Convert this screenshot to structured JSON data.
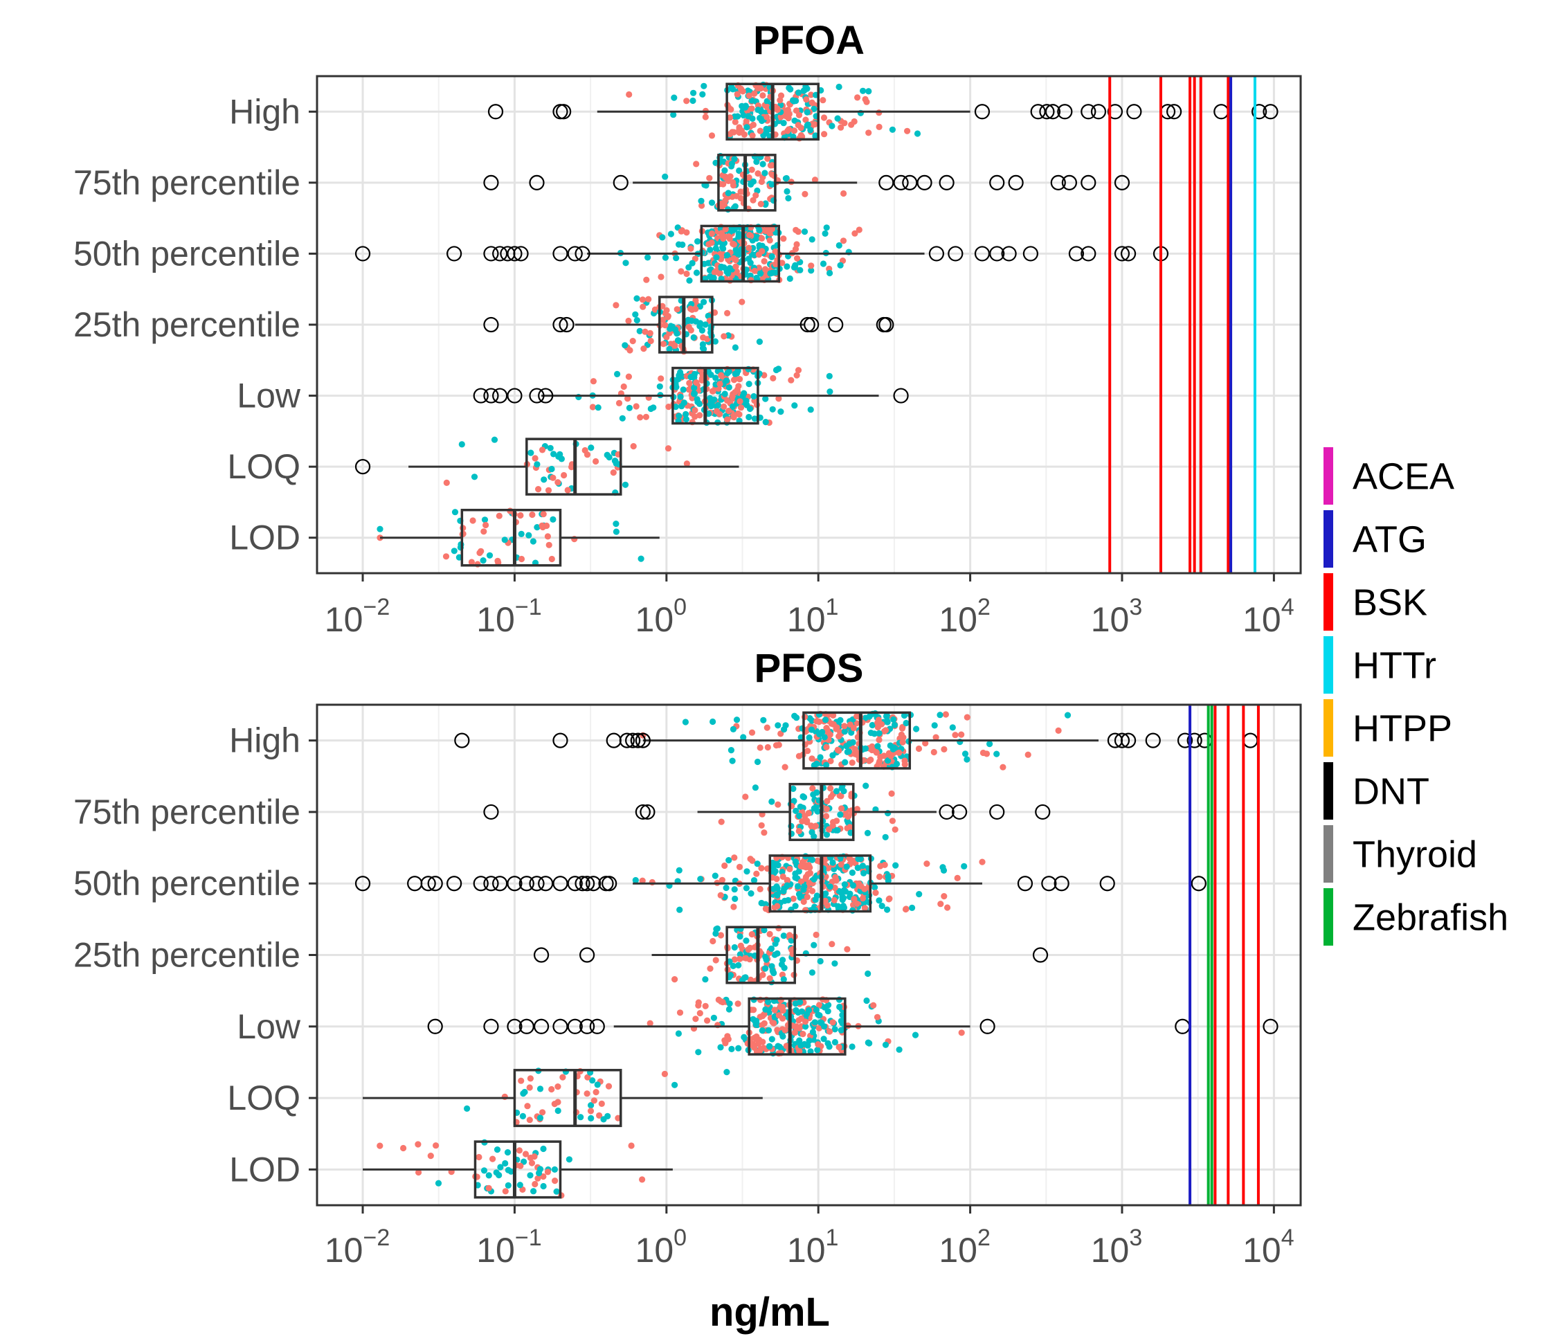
{
  "figure": {
    "xlabel": "ng/mL",
    "legend_position": "right",
    "legend": [
      {
        "label": "ACEA",
        "color": "#e21bb5"
      },
      {
        "label": "ATG",
        "color": "#1c1cc4"
      },
      {
        "label": "BSK",
        "color": "#ff0000"
      },
      {
        "label": "HTTr",
        "color": "#00d9ee"
      },
      {
        "label": "HTPP",
        "color": "#ffb400"
      },
      {
        "label": "DNT",
        "color": "#000000"
      },
      {
        "label": "Thyroid",
        "color": "#808080"
      },
      {
        "label": "Zebrafish",
        "color": "#00b233"
      }
    ],
    "point_colors": {
      "a": "#f8766d",
      "b": "#00bfc4"
    }
  },
  "chart_data": [
    {
      "type": "boxplot",
      "title": "PFOA",
      "xlabel": "ng/mL",
      "x_scale": "log10",
      "xlim": [
        0.005,
        15000
      ],
      "x_ticks": [
        {
          "value": 0.01,
          "base": "10",
          "exp": "−2"
        },
        {
          "value": 0.1,
          "base": "10",
          "exp": "−1"
        },
        {
          "value": 1,
          "base": "10",
          "exp": "0"
        },
        {
          "value": 10,
          "base": "10",
          "exp": "1"
        },
        {
          "value": 100,
          "base": "10",
          "exp": "2"
        },
        {
          "value": 1000,
          "base": "10",
          "exp": "3"
        },
        {
          "value": 10000,
          "base": "10",
          "exp": "4"
        }
      ],
      "categories": [
        "High",
        "75th percentile",
        "50th percentile",
        "25th percentile",
        "Low",
        "LOQ",
        "LOD"
      ],
      "boxes": [
        {
          "label": "High",
          "q1": 2.5,
          "median": 5,
          "q3": 10,
          "wmin": 0.35,
          "wmax": 100,
          "spread": [
            0.35,
            100
          ],
          "n": 220,
          "outliers": [
            0.075,
            0.2,
            0.21,
            120,
            280,
            320,
            350,
            420,
            600,
            700,
            900,
            1200,
            2000,
            2200,
            4500,
            8000,
            9500
          ]
        },
        {
          "label": "75th percentile",
          "q1": 2.2,
          "median": 3.3,
          "q3": 5.2,
          "wmin": 0.6,
          "wmax": 18,
          "spread": [
            0.6,
            18
          ],
          "n": 110,
          "outliers": [
            0.07,
            0.14,
            0.5,
            28,
            35,
            40,
            50,
            70,
            150,
            200,
            380,
            450,
            600,
            1000
          ]
        },
        {
          "label": "50th percentile",
          "q1": 1.7,
          "median": 3.2,
          "q3": 5.5,
          "wmin": 0.3,
          "wmax": 50,
          "spread": [
            0.3,
            50
          ],
          "n": 320,
          "outliers": [
            0.01,
            0.04,
            0.07,
            0.08,
            0.09,
            0.1,
            0.11,
            0.2,
            0.25,
            0.28,
            60,
            80,
            120,
            150,
            180,
            250,
            500,
            600,
            1000,
            1100,
            1800
          ]
        },
        {
          "label": "25th percentile",
          "q1": 0.9,
          "median": 1.3,
          "q3": 2.0,
          "wmin": 0.25,
          "wmax": 8,
          "spread": [
            0.25,
            8
          ],
          "n": 110,
          "outliers": [
            0.07,
            0.2,
            0.22,
            8.5,
            9,
            13,
            27,
            28
          ]
        },
        {
          "label": "Low",
          "q1": 1.1,
          "median": 1.8,
          "q3": 4.0,
          "wmin": 0.15,
          "wmax": 25,
          "spread": [
            0.15,
            25
          ],
          "n": 240,
          "outliers": [
            0.06,
            0.07,
            0.08,
            0.1,
            0.14,
            0.16,
            35
          ]
        },
        {
          "label": "LOQ",
          "q1": 0.12,
          "median": 0.25,
          "q3": 0.5,
          "wmin": 0.02,
          "wmax": 3,
          "spread": [
            0.02,
            3
          ],
          "n": 50,
          "outliers": [
            0.01
          ]
        },
        {
          "label": "LOD",
          "q1": 0.045,
          "median": 0.1,
          "q3": 0.2,
          "wmin": 0.013,
          "wmax": 0.9,
          "spread": [
            0.013,
            0.9
          ],
          "n": 55,
          "outliers": []
        }
      ],
      "vlines": [
        {
          "value": 830,
          "color": "#ff0000"
        },
        {
          "value": 1800,
          "color": "#ff0000"
        },
        {
          "value": 2800,
          "color": "#ff0000"
        },
        {
          "value": 3000,
          "color": "#ff0000"
        },
        {
          "value": 3300,
          "color": "#ff0000"
        },
        {
          "value": 5000,
          "color": "#ff0000"
        },
        {
          "value": 5200,
          "color": "#1c1cc4"
        },
        {
          "value": 7500,
          "color": "#00d9ee"
        }
      ]
    },
    {
      "type": "boxplot",
      "title": "PFOS",
      "xlabel": "ng/mL",
      "x_scale": "log10",
      "xlim": [
        0.005,
        15000
      ],
      "x_ticks": [
        {
          "value": 0.01,
          "base": "10",
          "exp": "−2"
        },
        {
          "value": 0.1,
          "base": "10",
          "exp": "−1"
        },
        {
          "value": 1,
          "base": "10",
          "exp": "0"
        },
        {
          "value": 10,
          "base": "10",
          "exp": "1"
        },
        {
          "value": 100,
          "base": "10",
          "exp": "2"
        },
        {
          "value": 1000,
          "base": "10",
          "exp": "3"
        },
        {
          "value": 10000,
          "base": "10",
          "exp": "4"
        }
      ],
      "categories": [
        "High",
        "75th percentile",
        "50th percentile",
        "25th percentile",
        "Low",
        "LOQ",
        "LOD"
      ],
      "boxes": [
        {
          "label": "High",
          "q1": 8,
          "median": 19,
          "q3": 40,
          "wmin": 0.7,
          "wmax": 700,
          "spread": [
            0.7,
            700
          ],
          "n": 260,
          "outliers": [
            0.045,
            0.2,
            0.45,
            0.55,
            0.6,
            0.65,
            0.7,
            900,
            1000,
            1100,
            1600,
            2600,
            3000,
            3500,
            7000
          ]
        },
        {
          "label": "75th percentile",
          "q1": 6.5,
          "median": 10.5,
          "q3": 17,
          "wmin": 1.6,
          "wmax": 60,
          "spread": [
            1.6,
            60
          ],
          "n": 110,
          "outliers": [
            0.07,
            0.7,
            0.75,
            70,
            85,
            150,
            300
          ]
        },
        {
          "label": "50th percentile",
          "q1": 4.8,
          "median": 10.5,
          "q3": 22,
          "wmin": 0.6,
          "wmax": 120,
          "spread": [
            0.6,
            120
          ],
          "n": 320,
          "outliers": [
            0.01,
            0.022,
            0.027,
            0.03,
            0.04,
            0.06,
            0.07,
            0.08,
            0.1,
            0.12,
            0.14,
            0.16,
            0.2,
            0.25,
            0.28,
            0.3,
            0.33,
            0.4,
            0.42,
            230,
            330,
            400,
            800,
            3200
          ]
        },
        {
          "label": "25th percentile",
          "q1": 2.5,
          "median": 4.0,
          "q3": 7.0,
          "wmin": 0.8,
          "wmax": 22,
          "spread": [
            0.8,
            22
          ],
          "n": 110,
          "outliers": [
            0.15,
            0.3,
            290
          ]
        },
        {
          "label": "Low",
          "q1": 3.5,
          "median": 6.5,
          "q3": 15,
          "wmin": 0.45,
          "wmax": 100,
          "spread": [
            0.45,
            100
          ],
          "n": 260,
          "outliers": [
            0.03,
            0.07,
            0.1,
            0.12,
            0.15,
            0.2,
            0.25,
            0.3,
            0.35,
            130,
            2500,
            9500
          ]
        },
        {
          "label": "LOQ",
          "q1": 0.1,
          "median": 0.25,
          "q3": 0.5,
          "wmin": 0.01,
          "wmax": 4.3,
          "spread": [
            0.01,
            4.3
          ],
          "n": 50,
          "outliers": []
        },
        {
          "label": "LOD",
          "q1": 0.055,
          "median": 0.1,
          "q3": 0.2,
          "wmin": 0.01,
          "wmax": 1.1,
          "spread": [
            0.01,
            1.1
          ],
          "n": 60,
          "outliers": []
        }
      ],
      "vlines": [
        {
          "value": 2800,
          "color": "#1c1cc4"
        },
        {
          "value": 3700,
          "color": "#00b233"
        },
        {
          "value": 3900,
          "color": "#00b233"
        },
        {
          "value": 4100,
          "color": "#ff0000"
        },
        {
          "value": 5000,
          "color": "#ff0000"
        },
        {
          "value": 6300,
          "color": "#ff0000"
        },
        {
          "value": 7900,
          "color": "#ff0000"
        }
      ]
    }
  ]
}
